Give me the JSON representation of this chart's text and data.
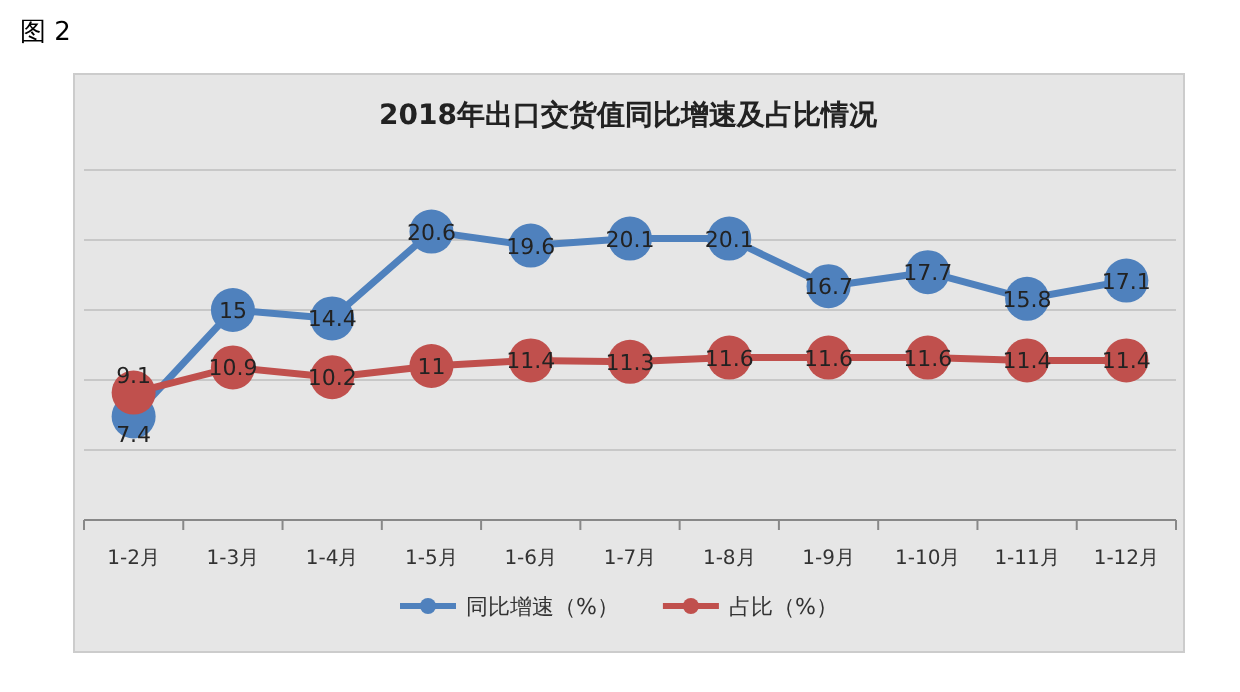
{
  "chart_data": {
    "type": "line",
    "title": "2018年出口交货值同比增速及占比情况",
    "annotations": [
      "图 2"
    ],
    "categories": [
      "1-2月",
      "1-3月",
      "1-4月",
      "1-5月",
      "1-6月",
      "1-7月",
      "1-8月",
      "1-9月",
      "1-10月",
      "1-11月",
      "1-12月"
    ],
    "series": [
      {
        "name": "同比增速（%）",
        "color": "#4f81bd",
        "values": [
          7.4,
          15,
          14.4,
          20.6,
          19.6,
          20.1,
          20.1,
          16.7,
          17.7,
          15.8,
          17.1
        ]
      },
      {
        "name": "占比（%）",
        "color": "#c0504d",
        "values": [
          9.1,
          10.9,
          10.2,
          11,
          11.4,
          11.3,
          11.6,
          11.6,
          11.6,
          11.4,
          11.4
        ]
      }
    ],
    "ylim": [
      0,
      25
    ],
    "yticks": [
      {
        "value": 0,
        "label": null
      },
      {
        "value": 5,
        "label": null
      },
      {
        "value": 10,
        "label": null
      },
      {
        "value": 15,
        "label": null
      },
      {
        "value": 20,
        "label": null
      },
      {
        "value": 25,
        "label": null
      }
    ],
    "tick_labels": "x",
    "grid": "y",
    "legend": "bottom",
    "marker": "circle",
    "line_style": "solid",
    "data_labels": true
  }
}
